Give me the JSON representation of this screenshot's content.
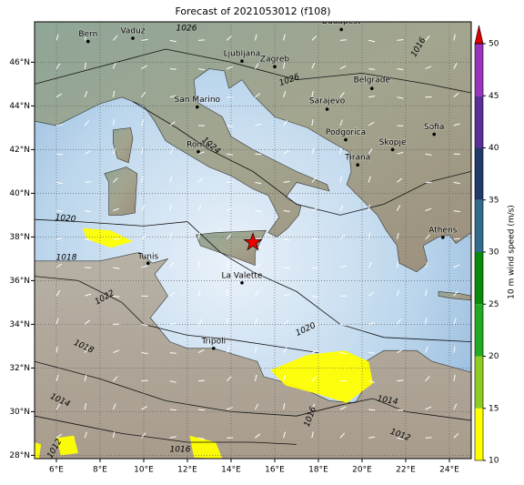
{
  "title": "Forecast of 2021053012 (f108)",
  "cities": [
    "Bern",
    "Vaduz",
    "Budapest",
    "Ljubljana",
    "Zagreb",
    "San Marino",
    "Belgrade",
    "Sarajevo",
    "Podgorica",
    "Sofia",
    "Skopje",
    "Tirana",
    "Roma",
    "Tunis",
    "La Valette",
    "Athens",
    "Tripoli"
  ],
  "isobar_labels": [
    "1026",
    "1016",
    "1026",
    "1024",
    "1020",
    "1018",
    "1022",
    "1020",
    "1018",
    "1014",
    "1016",
    "1014",
    "1012",
    "1012",
    "1016"
  ],
  "lon_labels": [
    "6°E",
    "8°E",
    "10°E",
    "12°E",
    "14°E",
    "16°E",
    "18°E",
    "20°E",
    "22°E",
    "24°E"
  ],
  "lat_labels": [
    "28°N",
    "30°N",
    "32°N",
    "34°N",
    "36°N",
    "38°N",
    "40°N",
    "42°N",
    "44°N",
    "46°N"
  ],
  "colorbar": {
    "label": "10 m wind speed (m/s)",
    "clim": [
      10,
      50
    ],
    "ticks": [
      10,
      15,
      20,
      25,
      30,
      35,
      40,
      45,
      50
    ],
    "colors": [
      "#ffff00",
      "#8fcc22",
      "#22aa22",
      "#0a8a0a",
      "#336b8f",
      "#203a6a",
      "#5a2f9a",
      "#9a33bb"
    ],
    "extend_color": "#dd0000"
  }
}
